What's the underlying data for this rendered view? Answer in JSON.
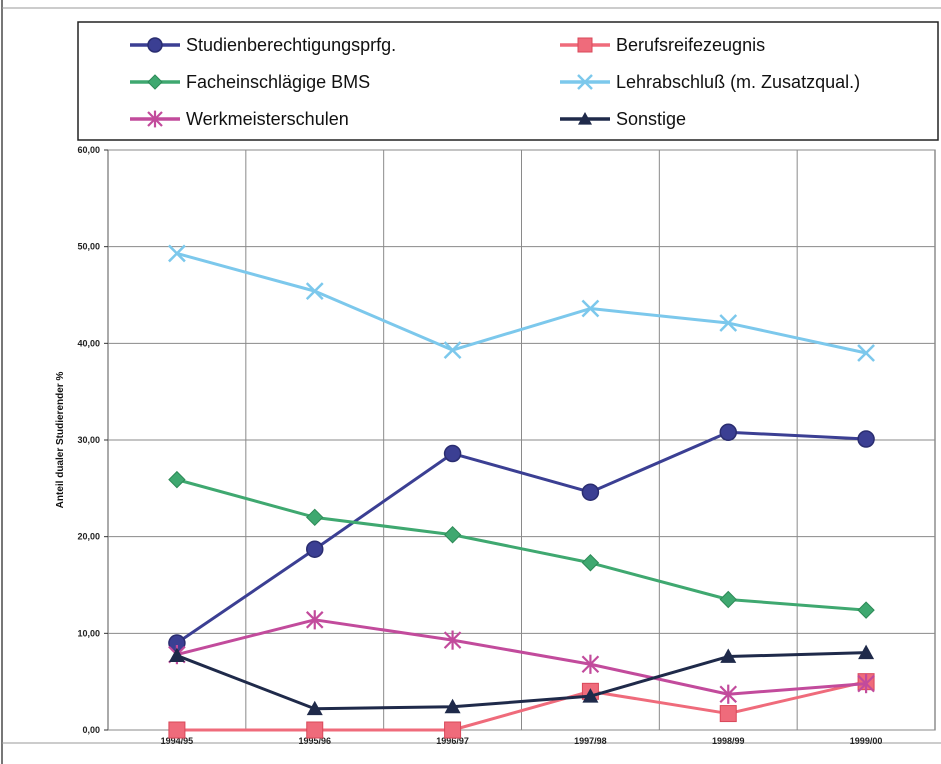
{
  "chart_data": {
    "type": "line",
    "title": "",
    "xlabel": "",
    "ylabel": "Anteil dualer Studierender %",
    "categories": [
      "1994/95",
      "1995/96",
      "1996/97",
      "1997/98",
      "1998/99",
      "1999/00"
    ],
    "ylim": [
      0,
      60
    ],
    "yticks": [
      "0,00",
      "10,00",
      "20,00",
      "30,00",
      "40,00",
      "50,00",
      "60,00"
    ],
    "grid": true,
    "legend_position": "top",
    "series": [
      {
        "name": "Studienberechtigungsprfg.",
        "color": "#3b3f93",
        "marker": "circle",
        "values": [
          9.0,
          18.7,
          28.6,
          24.6,
          30.8,
          30.1
        ]
      },
      {
        "name": "Berufsreifezeugnis",
        "color": "#ef6b7b",
        "marker": "square",
        "values": [
          0.0,
          0.0,
          0.0,
          4.0,
          1.7,
          5.0
        ]
      },
      {
        "name": "Facheinschlägige BMS",
        "color": "#3fa870",
        "marker": "diamond",
        "values": [
          25.9,
          22.0,
          20.2,
          17.3,
          13.5,
          12.4
        ]
      },
      {
        "name": "Lehrabschluß (m. Zusatzqual.)",
        "color": "#7cc8ec",
        "marker": "x",
        "values": [
          49.3,
          45.4,
          39.3,
          43.6,
          42.1,
          39.0
        ]
      },
      {
        "name": "Werkmeisterschulen",
        "color": "#c24b9c",
        "marker": "star",
        "values": [
          7.8,
          11.4,
          9.3,
          6.8,
          3.7,
          4.8
        ]
      },
      {
        "name": "Sonstige",
        "color": "#1f2a4a",
        "marker": "triangle",
        "values": [
          7.7,
          2.2,
          2.4,
          3.5,
          7.6,
          8.0
        ]
      }
    ]
  }
}
